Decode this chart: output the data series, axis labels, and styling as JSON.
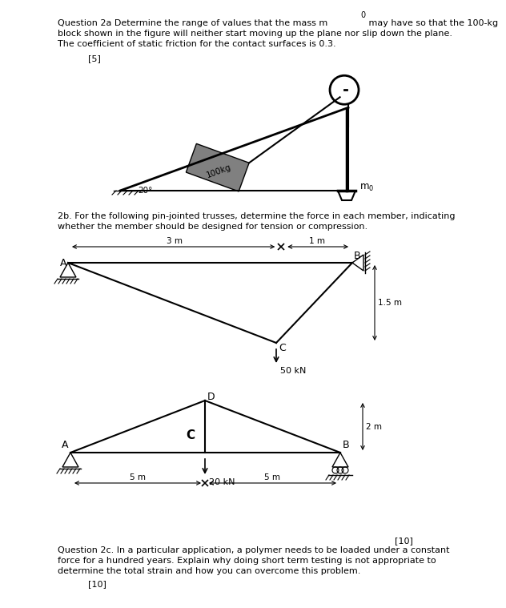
{
  "bg_color": "#ffffff",
  "text_color": "#000000",
  "q2a_line1": "Question 2a Determine the range of values that the mass m",
  "q2a_sub": "0",
  "q2a_line1b": " may have so that the 100-kg",
  "q2a_line2": "block shown in the figure will neither start moving up the plane nor slip down the plane.",
  "q2a_line3": "The coefficient of static friction for the contact surfaces is 0.3.",
  "q2a_marks": "[5]",
  "q2b_line1": "2b. For the following pin-jointed trusses, determine the force in each member, indicating",
  "q2b_line2": "whether the member should be designed for tension or compression.",
  "q2b_marks": "[10]",
  "q2c_line1": "Question 2c. In a particular application, a polymer needs to be loaded under a constant",
  "q2c_line2": "force for a hundred years. Explain why doing short term testing is not appropriate to",
  "q2c_line3": "determine the total strain and how you can overcome this problem.",
  "q2c_marks": "[10]"
}
